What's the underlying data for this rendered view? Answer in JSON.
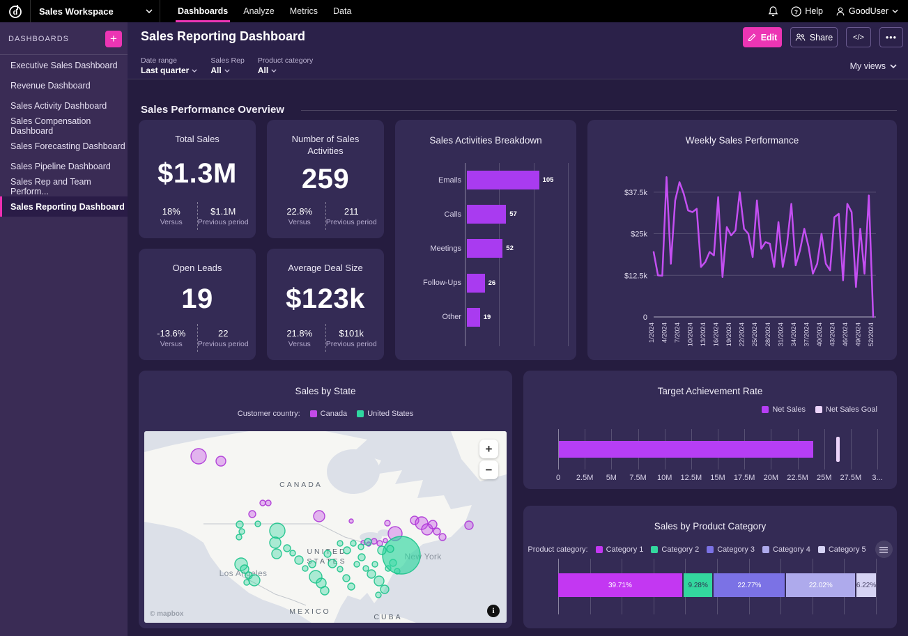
{
  "topnav": {
    "workspace": "Sales Workspace",
    "tabs": [
      "Dashboards",
      "Analyze",
      "Metrics",
      "Data"
    ],
    "active_tab": "Dashboards",
    "help_label": "Help",
    "user_label": "GoodUser"
  },
  "sidebar": {
    "header": "DASHBOARDS",
    "add_label": "+",
    "items": [
      "Executive Sales Dashboard",
      "Revenue Dashboard",
      "Sales Activity Dashboard",
      "Sales Compensation Dashboard",
      "Sales Forecasting Dashboard",
      "Sales Pipeline Dashboard",
      "Sales Rep and Team Perform...",
      "Sales Reporting Dashboard"
    ],
    "selected": "Sales Reporting Dashboard"
  },
  "header": {
    "title": "Sales Reporting Dashboard",
    "edit_label": "Edit",
    "share_label": "Share",
    "code_label": "</>",
    "more_label": "•••"
  },
  "filters": {
    "items": [
      {
        "label": "Date range",
        "value": "Last quarter"
      },
      {
        "label": "Sales Rep",
        "value": "All"
      },
      {
        "label": "Product category",
        "value": "All"
      }
    ],
    "views_label": "My views"
  },
  "section": {
    "title": "Sales Performance Overview"
  },
  "kpis": [
    {
      "title": "Total Sales",
      "value": "$1.3M",
      "change": "18%",
      "change_label": "Versus",
      "prev": "$1.1M",
      "prev_label": "Previous period"
    },
    {
      "title": "Number of Sales Activities",
      "value": "259",
      "change": "22.8%",
      "change_label": "Versus",
      "prev": "211",
      "prev_label": "Previous period"
    },
    {
      "title": "Open Leads",
      "value": "19",
      "change": "-13.6%",
      "change_label": "Versus",
      "prev": "22",
      "prev_label": "Previous period"
    },
    {
      "title": "Average Deal Size",
      "value": "$123k",
      "change": "21.8%",
      "change_label": "Versus",
      "prev": "$101k",
      "prev_label": "Previous period"
    }
  ],
  "colors": {
    "accent_pink": "#ec35b4",
    "bar_purple": "#a93bf0",
    "line_purple": "#c44ff2",
    "teal": "#2fd7a0",
    "canada_purple": "#c24ae8",
    "net_sales": "#b63ef5",
    "net_sales_goal": "#ecd4fa",
    "card_bg": "#342b55",
    "sidebar_bg": "#3a2c55",
    "content_bg": "#251c3f",
    "grid_line": "#575073"
  },
  "chart_data": [
    {
      "id": "activities",
      "type": "bar",
      "orientation": "horizontal",
      "title": "Sales Activities Breakdown",
      "categories": [
        "Emails",
        "Calls",
        "Meetings",
        "Follow-Ups",
        "Other"
      ],
      "values": [
        105,
        57,
        52,
        26,
        19
      ],
      "xlim": [
        0,
        150
      ],
      "gridline_values": [
        0,
        50,
        100,
        150
      ],
      "bar_color": "#a93bf0"
    },
    {
      "id": "weekly",
      "type": "line",
      "title": "Weekly Sales Performance",
      "x_tick_labels": [
        "1/2024",
        "4/2024",
        "7/2024",
        "10/2024",
        "13/2024",
        "16/2024",
        "19/2024",
        "22/2024",
        "25/2024",
        "28/2024",
        "31/2024",
        "34/2024",
        "37/2024",
        "40/2024",
        "43/2024",
        "46/2024",
        "49/2024",
        "52/2024"
      ],
      "x_tick_weeks": [
        1,
        4,
        7,
        10,
        13,
        16,
        19,
        22,
        25,
        28,
        31,
        34,
        37,
        40,
        43,
        46,
        49,
        52
      ],
      "values_k": [
        19.5,
        12.5,
        12.4,
        42,
        16,
        35,
        40.5,
        37,
        32,
        31.5,
        32.5,
        15,
        16.5,
        19.5,
        18.5,
        36,
        12,
        27,
        24.5,
        26,
        37.5,
        26.5,
        25,
        18,
        35,
        20.5,
        22.5,
        22,
        15,
        28.5,
        15,
        22,
        34,
        15.5,
        20,
        26.5,
        21,
        13,
        16,
        25,
        16,
        14,
        30,
        31,
        11,
        34,
        31.5,
        9,
        26.5,
        13,
        36.5,
        0
      ],
      "y_ticks": [
        {
          "v": 0,
          "label": "0"
        },
        {
          "v": 12.5,
          "label": "$12.5k"
        },
        {
          "v": 25,
          "label": "$25k"
        },
        {
          "v": 37.5,
          "label": "$37.5k"
        }
      ],
      "ylim": [
        0,
        45
      ],
      "line_color": "#c44ff2"
    },
    {
      "id": "map",
      "type": "scatter-map",
      "title": "Sales by State",
      "legend_label": "Customer country:",
      "legend": [
        {
          "name": "Canada",
          "color": "#c24ae8"
        },
        {
          "name": "United States",
          "color": "#2fd7a0"
        }
      ],
      "map_labels": [
        {
          "text": "CANADA",
          "x": 225,
          "y": 80,
          "cls": "country"
        },
        {
          "text": "UNITED",
          "x": 262,
          "y": 176,
          "cls": "country"
        },
        {
          "text": "STATES",
          "x": 262,
          "y": 190,
          "cls": "country"
        },
        {
          "text": "MEXICO",
          "x": 238,
          "y": 262,
          "cls": "country"
        },
        {
          "text": "CUBA",
          "x": 350,
          "y": 270,
          "cls": "country"
        },
        {
          "text": "New York",
          "x": 400,
          "y": 184,
          "cls": "city"
        },
        {
          "text": "Los Angeles",
          "x": 142,
          "y": 208,
          "cls": "city"
        }
      ],
      "zoom_in": "+",
      "zoom_out": "−",
      "attribution": "© mapbox",
      "info_label": "i",
      "bubbles": [
        {
          "x": 78,
          "y": 36,
          "r": 11,
          "c": "ca"
        },
        {
          "x": 110,
          "y": 43,
          "r": 7,
          "c": "ca"
        },
        {
          "x": 170,
          "y": 103,
          "r": 4,
          "c": "ca"
        },
        {
          "x": 178,
          "y": 103,
          "r": 4,
          "c": "ca"
        },
        {
          "x": 155,
          "y": 119,
          "r": 5,
          "c": "ca"
        },
        {
          "x": 251,
          "y": 122,
          "r": 8,
          "c": "ca"
        },
        {
          "x": 297,
          "y": 129,
          "r": 3,
          "c": "ca"
        },
        {
          "x": 349,
          "y": 132,
          "r": 4,
          "c": "ca"
        },
        {
          "x": 330,
          "y": 158,
          "r": 4,
          "c": "ca"
        },
        {
          "x": 338,
          "y": 161,
          "r": 4,
          "c": "ca"
        },
        {
          "x": 346,
          "y": 157,
          "r": 3,
          "c": "ca"
        },
        {
          "x": 360,
          "y": 147,
          "r": 10,
          "c": "ca"
        },
        {
          "x": 388,
          "y": 128,
          "r": 6,
          "c": "ca"
        },
        {
          "x": 398,
          "y": 132,
          "r": 9,
          "c": "ca"
        },
        {
          "x": 406,
          "y": 141,
          "r": 8,
          "c": "ca"
        },
        {
          "x": 414,
          "y": 134,
          "r": 6,
          "c": "ca"
        },
        {
          "x": 420,
          "y": 144,
          "r": 5,
          "c": "ca"
        },
        {
          "x": 428,
          "y": 152,
          "r": 5,
          "c": "ca"
        },
        {
          "x": 466,
          "y": 135,
          "r": 6,
          "c": "ca"
        },
        {
          "x": 322,
          "y": 162,
          "r": 3,
          "c": "ca"
        },
        {
          "x": 314,
          "y": 160,
          "r": 3,
          "c": "ca"
        },
        {
          "x": 137,
          "y": 134,
          "r": 5,
          "c": "us"
        },
        {
          "x": 140,
          "y": 144,
          "r": 4,
          "c": "us"
        },
        {
          "x": 136,
          "y": 152,
          "r": 4,
          "c": "us"
        },
        {
          "x": 163,
          "y": 133,
          "r": 4,
          "c": "us"
        },
        {
          "x": 191,
          "y": 143,
          "r": 11,
          "c": "us"
        },
        {
          "x": 188,
          "y": 160,
          "r": 8,
          "c": "us"
        },
        {
          "x": 190,
          "y": 176,
          "r": 7,
          "c": "us"
        },
        {
          "x": 222,
          "y": 185,
          "r": 6,
          "c": "us"
        },
        {
          "x": 139,
          "y": 191,
          "r": 9,
          "c": "us"
        },
        {
          "x": 144,
          "y": 198,
          "r": 6,
          "c": "us"
        },
        {
          "x": 150,
          "y": 207,
          "r": 5,
          "c": "us"
        },
        {
          "x": 158,
          "y": 214,
          "r": 8,
          "c": "us"
        },
        {
          "x": 147,
          "y": 217,
          "r": 4,
          "c": "us"
        },
        {
          "x": 246,
          "y": 209,
          "r": 9,
          "c": "us"
        },
        {
          "x": 254,
          "y": 218,
          "r": 7,
          "c": "us"
        },
        {
          "x": 259,
          "y": 229,
          "r": 6,
          "c": "us"
        },
        {
          "x": 270,
          "y": 190,
          "r": 6,
          "c": "us"
        },
        {
          "x": 281,
          "y": 198,
          "r": 4,
          "c": "us"
        },
        {
          "x": 290,
          "y": 211,
          "r": 5,
          "c": "us"
        },
        {
          "x": 297,
          "y": 223,
          "r": 5,
          "c": "us"
        },
        {
          "x": 305,
          "y": 191,
          "r": 4,
          "c": "us"
        },
        {
          "x": 312,
          "y": 181,
          "r": 5,
          "c": "us"
        },
        {
          "x": 318,
          "y": 197,
          "r": 4,
          "c": "us"
        },
        {
          "x": 326,
          "y": 205,
          "r": 6,
          "c": "us"
        },
        {
          "x": 331,
          "y": 191,
          "r": 4,
          "c": "us"
        },
        {
          "x": 337,
          "y": 215,
          "r": 7,
          "c": "us"
        },
        {
          "x": 345,
          "y": 227,
          "r": 6,
          "c": "us"
        },
        {
          "x": 350,
          "y": 197,
          "r": 4,
          "c": "us"
        },
        {
          "x": 357,
          "y": 189,
          "r": 5,
          "c": "us"
        },
        {
          "x": 363,
          "y": 201,
          "r": 4,
          "c": "us"
        },
        {
          "x": 369,
          "y": 178,
          "r": 27,
          "c": "us",
          "o": 0.65
        },
        {
          "x": 341,
          "y": 171,
          "r": 6,
          "c": "us"
        },
        {
          "x": 353,
          "y": 169,
          "r": 5,
          "c": "us"
        },
        {
          "x": 300,
          "y": 161,
          "r": 4,
          "c": "us"
        },
        {
          "x": 311,
          "y": 166,
          "r": 4,
          "c": "us"
        },
        {
          "x": 321,
          "y": 159,
          "r": 5,
          "c": "us"
        },
        {
          "x": 291,
          "y": 171,
          "r": 5,
          "c": "us"
        },
        {
          "x": 281,
          "y": 161,
          "r": 4,
          "c": "us"
        },
        {
          "x": 336,
          "y": 235,
          "r": 4,
          "c": "us"
        },
        {
          "x": 263,
          "y": 176,
          "r": 5,
          "c": "us"
        },
        {
          "x": 241,
          "y": 191,
          "r": 5,
          "c": "us"
        },
        {
          "x": 231,
          "y": 197,
          "r": 4,
          "c": "us"
        },
        {
          "x": 205,
          "y": 168,
          "r": 5,
          "c": "us"
        },
        {
          "x": 213,
          "y": 175,
          "r": 4,
          "c": "us"
        }
      ]
    },
    {
      "id": "target",
      "type": "bullet",
      "title": "Target Achievement Rate",
      "legend": [
        {
          "name": "Net Sales",
          "color": "#b63ef5"
        },
        {
          "name": "Net Sales Goal",
          "color": "#ecd4fa"
        }
      ],
      "bar_value": 23900000,
      "target_value": 26300000,
      "xlim": [
        0,
        30000000
      ],
      "tick_labels": [
        "0",
        "2.5M",
        "5M",
        "7.5M",
        "10M",
        "12.5M",
        "15M",
        "17.5M",
        "20M",
        "22.5M",
        "25M",
        "27.5M",
        "3..."
      ]
    },
    {
      "id": "product",
      "type": "stacked-bar",
      "title": "Sales by Product Category",
      "legend_label": "Product category:",
      "segments": [
        {
          "name": "Category 1",
          "value": 39.71,
          "label": "39.71%",
          "color": "#c337f2",
          "text": "#ffffff"
        },
        {
          "name": "Category 2",
          "value": 9.28,
          "label": "9.28%",
          "color": "#33d79e",
          "text": "#2d3250"
        },
        {
          "name": "Category 3",
          "value": 22.77,
          "label": "22.77%",
          "color": "#7b72e5",
          "text": "#ffffff"
        },
        {
          "name": "Category 4",
          "value": 22.02,
          "label": "22.02%",
          "color": "#aeaaec",
          "text": "#ffffff"
        },
        {
          "name": "Category 5",
          "value": 6.22,
          "label": "6.22%",
          "color": "#d6d3f4",
          "text": "#4a4569"
        }
      ]
    }
  ]
}
